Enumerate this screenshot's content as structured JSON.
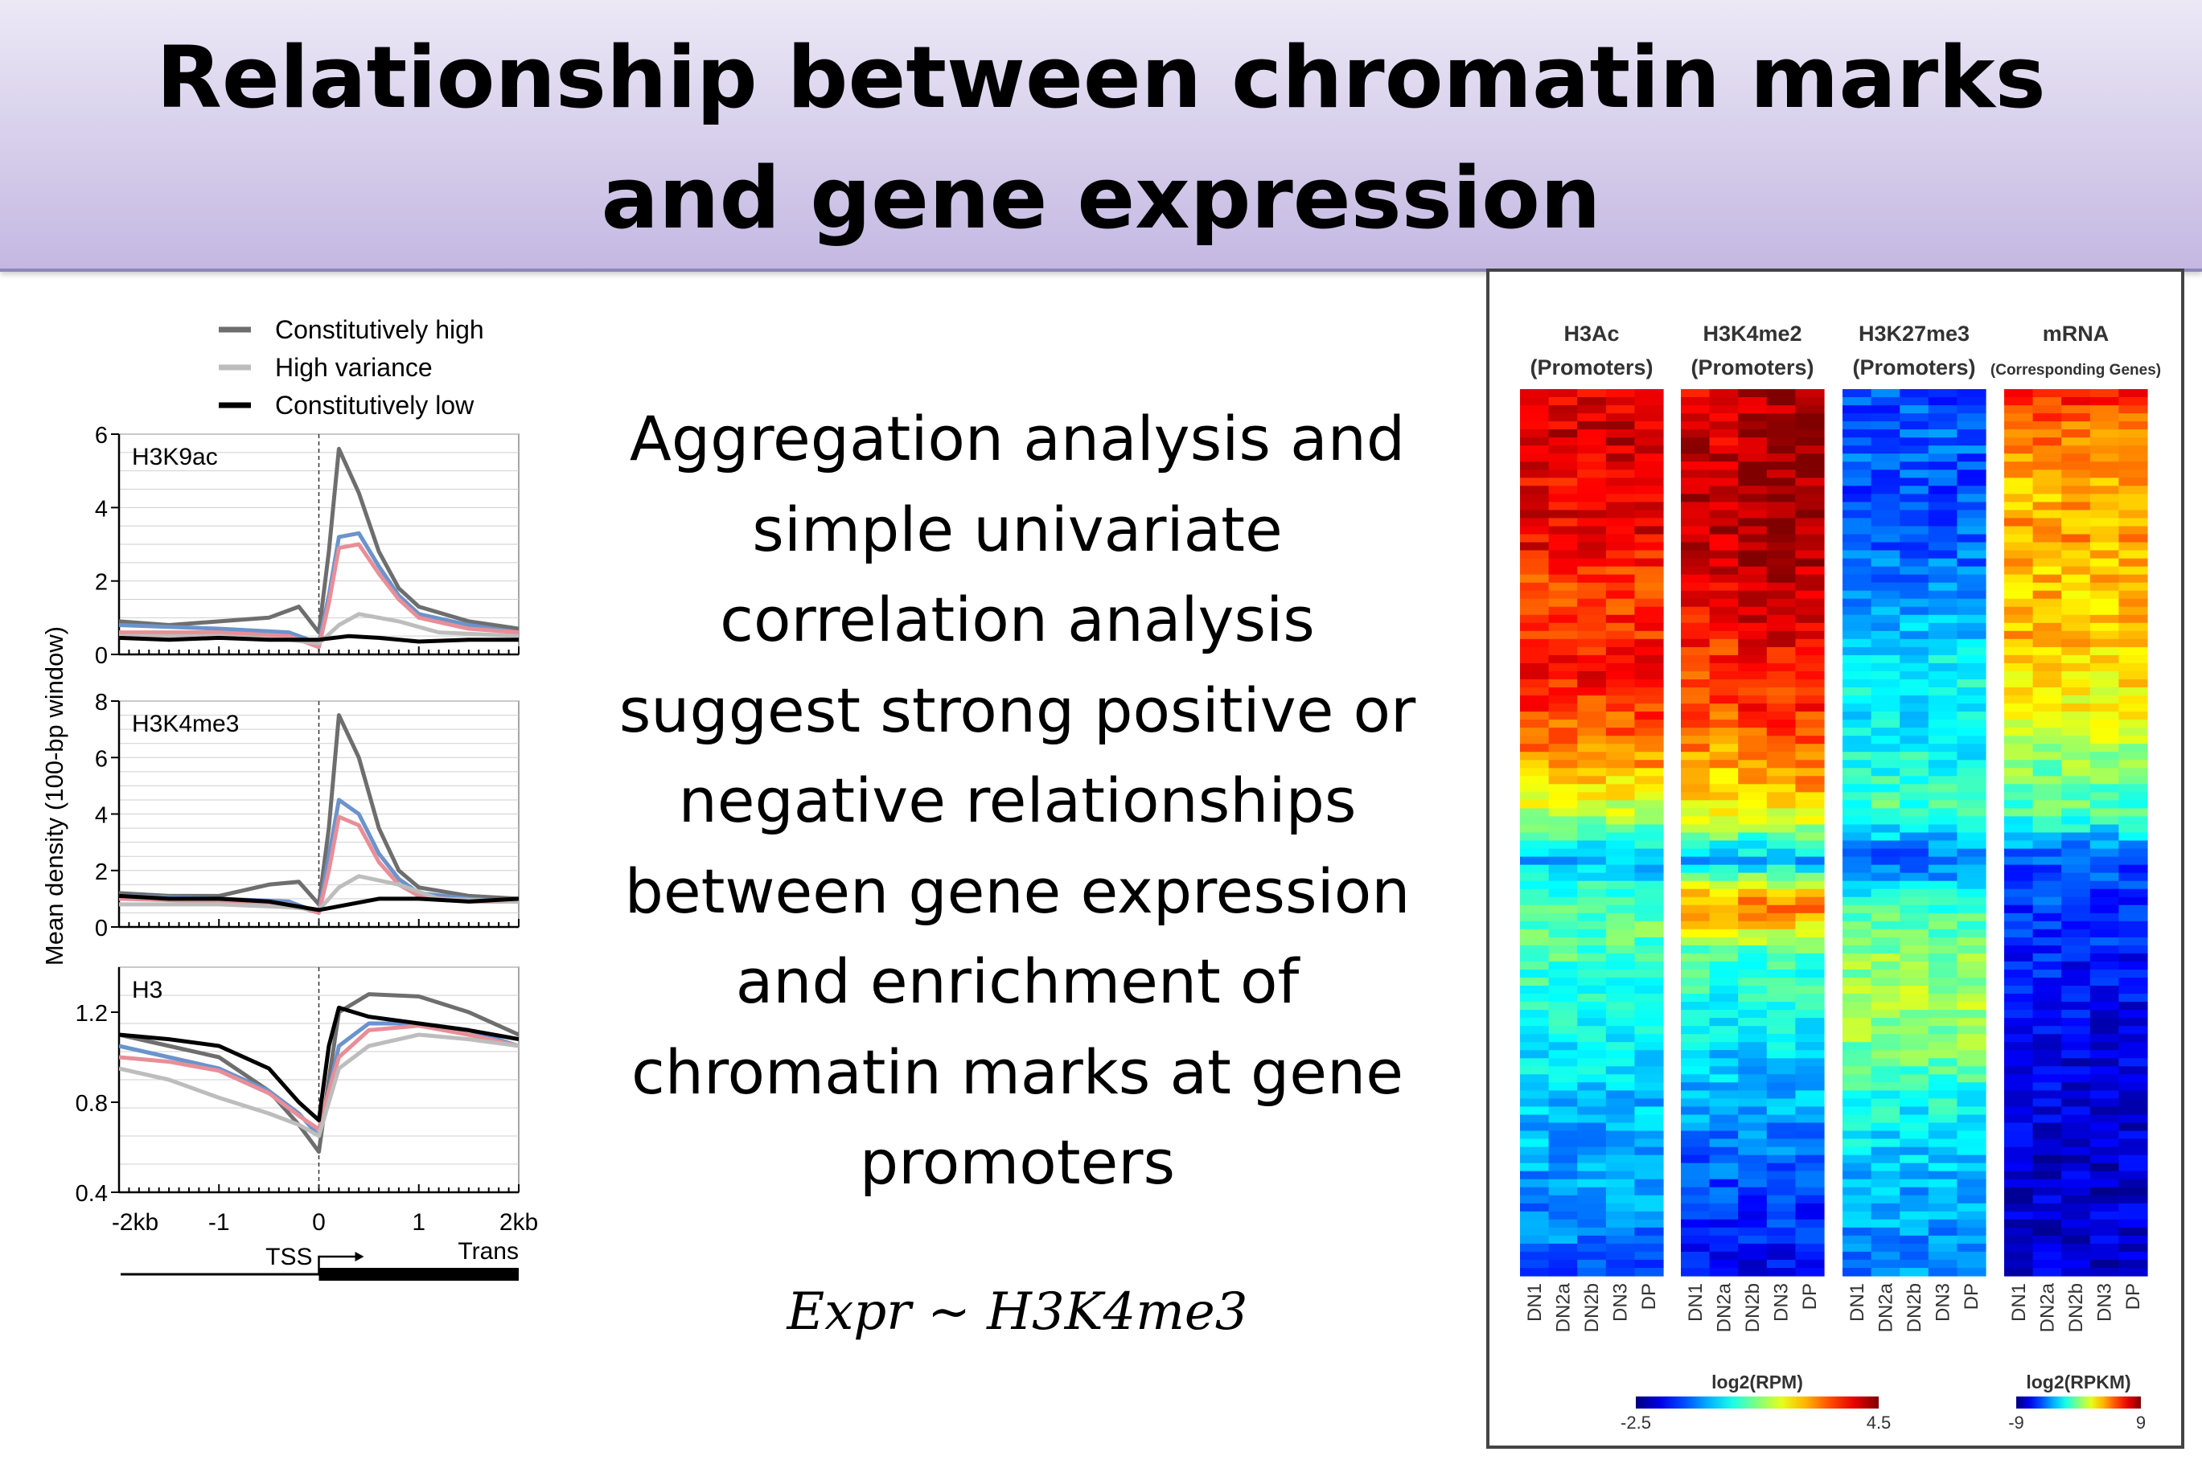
{
  "slide": {
    "title": "Relationship between chromatin marks and gene expression",
    "body": "Aggregation analysis and simple univariate correlation analysis suggest strong positive or negative relationships between gene expression and enrichment of chromatin marks at gene promoters",
    "formula": "Expr ~ H3K4me3"
  },
  "chart_data": [
    {
      "type": "line",
      "ylabel": "Mean density (100-bp window)",
      "legend": {
        "placement": "top",
        "entries": [
          {
            "label": "Constitutively high",
            "color": "#6e6e6e"
          },
          {
            "label": "High variance",
            "color": "#bdbdbd"
          },
          {
            "label": "Constitutively low",
            "color": "#000000"
          }
        ]
      },
      "extra_series_colors": [
        "#6b93cc",
        "#e88e98"
      ],
      "x_ticks": [
        "-2kb",
        "-1",
        "0",
        "1",
        "2kb"
      ],
      "xlim": [
        -2,
        2
      ],
      "tss_label": "TSS",
      "trans_label": "Trans",
      "panels": [
        {
          "name": "H3K9ac",
          "ylim": [
            0,
            6
          ],
          "yticks": [
            "0",
            "2",
            "4",
            "6"
          ],
          "series": [
            {
              "name": "Constitutively high",
              "color": "#6e6e6e",
              "x": [
                -2,
                -1.5,
                -1,
                -0.5,
                -0.2,
                0,
                0.1,
                0.2,
                0.4,
                0.6,
                0.8,
                1,
                1.5,
                2
              ],
              "y": [
                0.9,
                0.8,
                0.9,
                1.0,
                1.3,
                0.6,
                2.8,
                5.6,
                4.4,
                2.8,
                1.8,
                1.3,
                0.9,
                0.7
              ]
            },
            {
              "name": "blue",
              "color": "#6b93cc",
              "x": [
                -2,
                -1,
                -0.3,
                0,
                0.1,
                0.2,
                0.4,
                0.6,
                0.8,
                1,
                1.5,
                2
              ],
              "y": [
                0.8,
                0.7,
                0.6,
                0.3,
                1.6,
                3.2,
                3.3,
                2.4,
                1.6,
                1.1,
                0.8,
                0.6
              ]
            },
            {
              "name": "pink",
              "color": "#e88e98",
              "x": [
                -2,
                -1,
                -0.3,
                0,
                0.1,
                0.2,
                0.4,
                0.6,
                0.8,
                1,
                1.5,
                2
              ],
              "y": [
                0.6,
                0.6,
                0.5,
                0.2,
                1.4,
                2.9,
                3.0,
                2.2,
                1.5,
                1.0,
                0.7,
                0.6
              ]
            },
            {
              "name": "High variance",
              "color": "#bdbdbd",
              "x": [
                -2,
                -1,
                -0.3,
                0,
                0.2,
                0.4,
                0.8,
                1.2,
                2
              ],
              "y": [
                0.5,
                0.5,
                0.4,
                0.3,
                0.8,
                1.1,
                0.9,
                0.6,
                0.5
              ]
            },
            {
              "name": "Constitutively low",
              "color": "#000000",
              "x": [
                -2,
                -1.5,
                -1,
                -0.5,
                0,
                0.3,
                0.6,
                1,
                1.5,
                2
              ],
              "y": [
                0.45,
                0.4,
                0.45,
                0.4,
                0.4,
                0.5,
                0.45,
                0.35,
                0.4,
                0.4
              ]
            }
          ]
        },
        {
          "name": "H3K4me3",
          "ylim": [
            0,
            8
          ],
          "yticks": [
            "0",
            "2",
            "4",
            "6",
            "8"
          ],
          "series": [
            {
              "name": "Constitutively high",
              "color": "#6e6e6e",
              "x": [
                -2,
                -1.5,
                -1,
                -0.5,
                -0.2,
                0,
                0.1,
                0.2,
                0.4,
                0.6,
                0.8,
                1,
                1.5,
                2
              ],
              "y": [
                1.2,
                1.1,
                1.1,
                1.5,
                1.6,
                0.8,
                3.5,
                7.5,
                6.0,
                3.5,
                2.0,
                1.4,
                1.1,
                1.0
              ]
            },
            {
              "name": "blue",
              "color": "#6b93cc",
              "x": [
                -2,
                -1,
                -0.3,
                0,
                0.1,
                0.2,
                0.4,
                0.6,
                0.8,
                1,
                1.5,
                2
              ],
              "y": [
                1.1,
                1.0,
                0.9,
                0.5,
                2.5,
                4.5,
                4.0,
                2.6,
                1.7,
                1.2,
                1.0,
                0.9
              ]
            },
            {
              "name": "pink",
              "color": "#e88e98",
              "x": [
                -2,
                -1,
                -0.3,
                0,
                0.1,
                0.2,
                0.4,
                0.6,
                0.8,
                1,
                1.5,
                2
              ],
              "y": [
                1.0,
                0.9,
                0.8,
                0.5,
                2.0,
                3.9,
                3.6,
                2.3,
                1.5,
                1.1,
                0.9,
                0.9
              ]
            },
            {
              "name": "High variance",
              "color": "#bdbdbd",
              "x": [
                -2,
                -1,
                -0.3,
                0,
                0.2,
                0.4,
                0.8,
                1.2,
                2
              ],
              "y": [
                0.8,
                0.8,
                0.7,
                0.6,
                1.4,
                1.8,
                1.5,
                1.0,
                0.9
              ]
            },
            {
              "name": "Constitutively low",
              "color": "#000000",
              "x": [
                -2,
                -1.5,
                -1,
                -0.5,
                0,
                0.3,
                0.6,
                1,
                1.5,
                2
              ],
              "y": [
                1.1,
                1.0,
                1.0,
                0.9,
                0.6,
                0.8,
                1.0,
                1.0,
                0.9,
                1.0
              ]
            }
          ]
        },
        {
          "name": "H3",
          "ylim": [
            0.4,
            1.4
          ],
          "yticks": [
            "0.4",
            "0.8",
            "1.2"
          ],
          "series": [
            {
              "name": "Constitutively high",
              "color": "#6e6e6e",
              "x": [
                -2,
                -1.5,
                -1,
                -0.5,
                -0.2,
                0,
                0.1,
                0.2,
                0.5,
                1,
                1.5,
                2
              ],
              "y": [
                1.1,
                1.05,
                1.0,
                0.85,
                0.7,
                0.58,
                0.9,
                1.2,
                1.28,
                1.27,
                1.2,
                1.1
              ]
            },
            {
              "name": "blue",
              "color": "#6b93cc",
              "x": [
                -2,
                -1.5,
                -1,
                -0.5,
                -0.2,
                0,
                0.1,
                0.2,
                0.5,
                1,
                1.5,
                2
              ],
              "y": [
                1.05,
                1.0,
                0.95,
                0.85,
                0.75,
                0.65,
                0.85,
                1.05,
                1.15,
                1.15,
                1.12,
                1.05
              ]
            },
            {
              "name": "pink",
              "color": "#e88e98",
              "x": [
                -2,
                -1.5,
                -1,
                -0.5,
                -0.2,
                0,
                0.1,
                0.2,
                0.5,
                1,
                1.5,
                2
              ],
              "y": [
                1.0,
                0.98,
                0.94,
                0.84,
                0.74,
                0.68,
                0.85,
                1.0,
                1.12,
                1.14,
                1.1,
                1.05
              ]
            },
            {
              "name": "High variance",
              "color": "#bdbdbd",
              "x": [
                -2,
                -1.5,
                -1,
                -0.5,
                -0.2,
                0,
                0.1,
                0.2,
                0.5,
                1,
                1.5,
                2
              ],
              "y": [
                0.95,
                0.9,
                0.82,
                0.75,
                0.7,
                0.65,
                0.8,
                0.95,
                1.05,
                1.1,
                1.08,
                1.05
              ]
            },
            {
              "name": "Constitutively low",
              "color": "#000000",
              "x": [
                -2,
                -1.5,
                -1,
                -0.5,
                -0.2,
                0,
                0.1,
                0.2,
                0.5,
                1,
                1.5,
                2
              ],
              "y": [
                1.1,
                1.08,
                1.05,
                0.95,
                0.8,
                0.72,
                1.05,
                1.22,
                1.18,
                1.15,
                1.12,
                1.08
              ]
            }
          ]
        }
      ]
    },
    {
      "type": "heatmap",
      "panels": [
        {
          "title": "H3Ac",
          "subtitle": "(Promoters)",
          "columns": [
            "DN1",
            "DN2a",
            "DN2b",
            "DN3",
            "DP"
          ],
          "profile": [
            0.9,
            0.92,
            0.88,
            0.9,
            0.82,
            0.84,
            0.86,
            0.8,
            0.72,
            0.55,
            0.3,
            0.48,
            0.45,
            0.4,
            0.38,
            0.32,
            0.3,
            0.28,
            0.25,
            0.2
          ]
        },
        {
          "title": "H3K4me2",
          "subtitle": "(Promoters)",
          "columns": [
            "DN1",
            "DN2a",
            "DN2b",
            "DN3",
            "DP"
          ],
          "profile": [
            0.9,
            0.92,
            0.94,
            0.93,
            0.9,
            0.86,
            0.82,
            0.78,
            0.7,
            0.62,
            0.3,
            0.78,
            0.45,
            0.4,
            0.35,
            0.3,
            0.25,
            0.2,
            0.15,
            0.12
          ]
        },
        {
          "title": "H3K27me3",
          "subtitle": "(Promoters)",
          "columns": [
            "DN1",
            "DN2a",
            "DN2b",
            "DN3",
            "DP"
          ],
          "profile": [
            0.2,
            0.22,
            0.2,
            0.22,
            0.25,
            0.3,
            0.38,
            0.35,
            0.4,
            0.45,
            0.2,
            0.45,
            0.5,
            0.55,
            0.5,
            0.4,
            0.35,
            0.3,
            0.28,
            0.25
          ]
        },
        {
          "title": "mRNA",
          "subtitle": "(Corresponding Genes)",
          "columns": [
            "DN1",
            "DN2a",
            "DN2b",
            "DN3",
            "DP"
          ],
          "profile": [
            0.85,
            0.75,
            0.7,
            0.72,
            0.68,
            0.7,
            0.65,
            0.6,
            0.5,
            0.45,
            0.2,
            0.18,
            0.15,
            0.12,
            0.1,
            0.1,
            0.08,
            0.08,
            0.08,
            0.08
          ]
        }
      ],
      "scales": [
        {
          "label": "log2(RPM)",
          "min": "-2.5",
          "max": "4.5"
        },
        {
          "label": "log2(RPKM)",
          "min": "-9",
          "max": "9"
        }
      ]
    }
  ]
}
